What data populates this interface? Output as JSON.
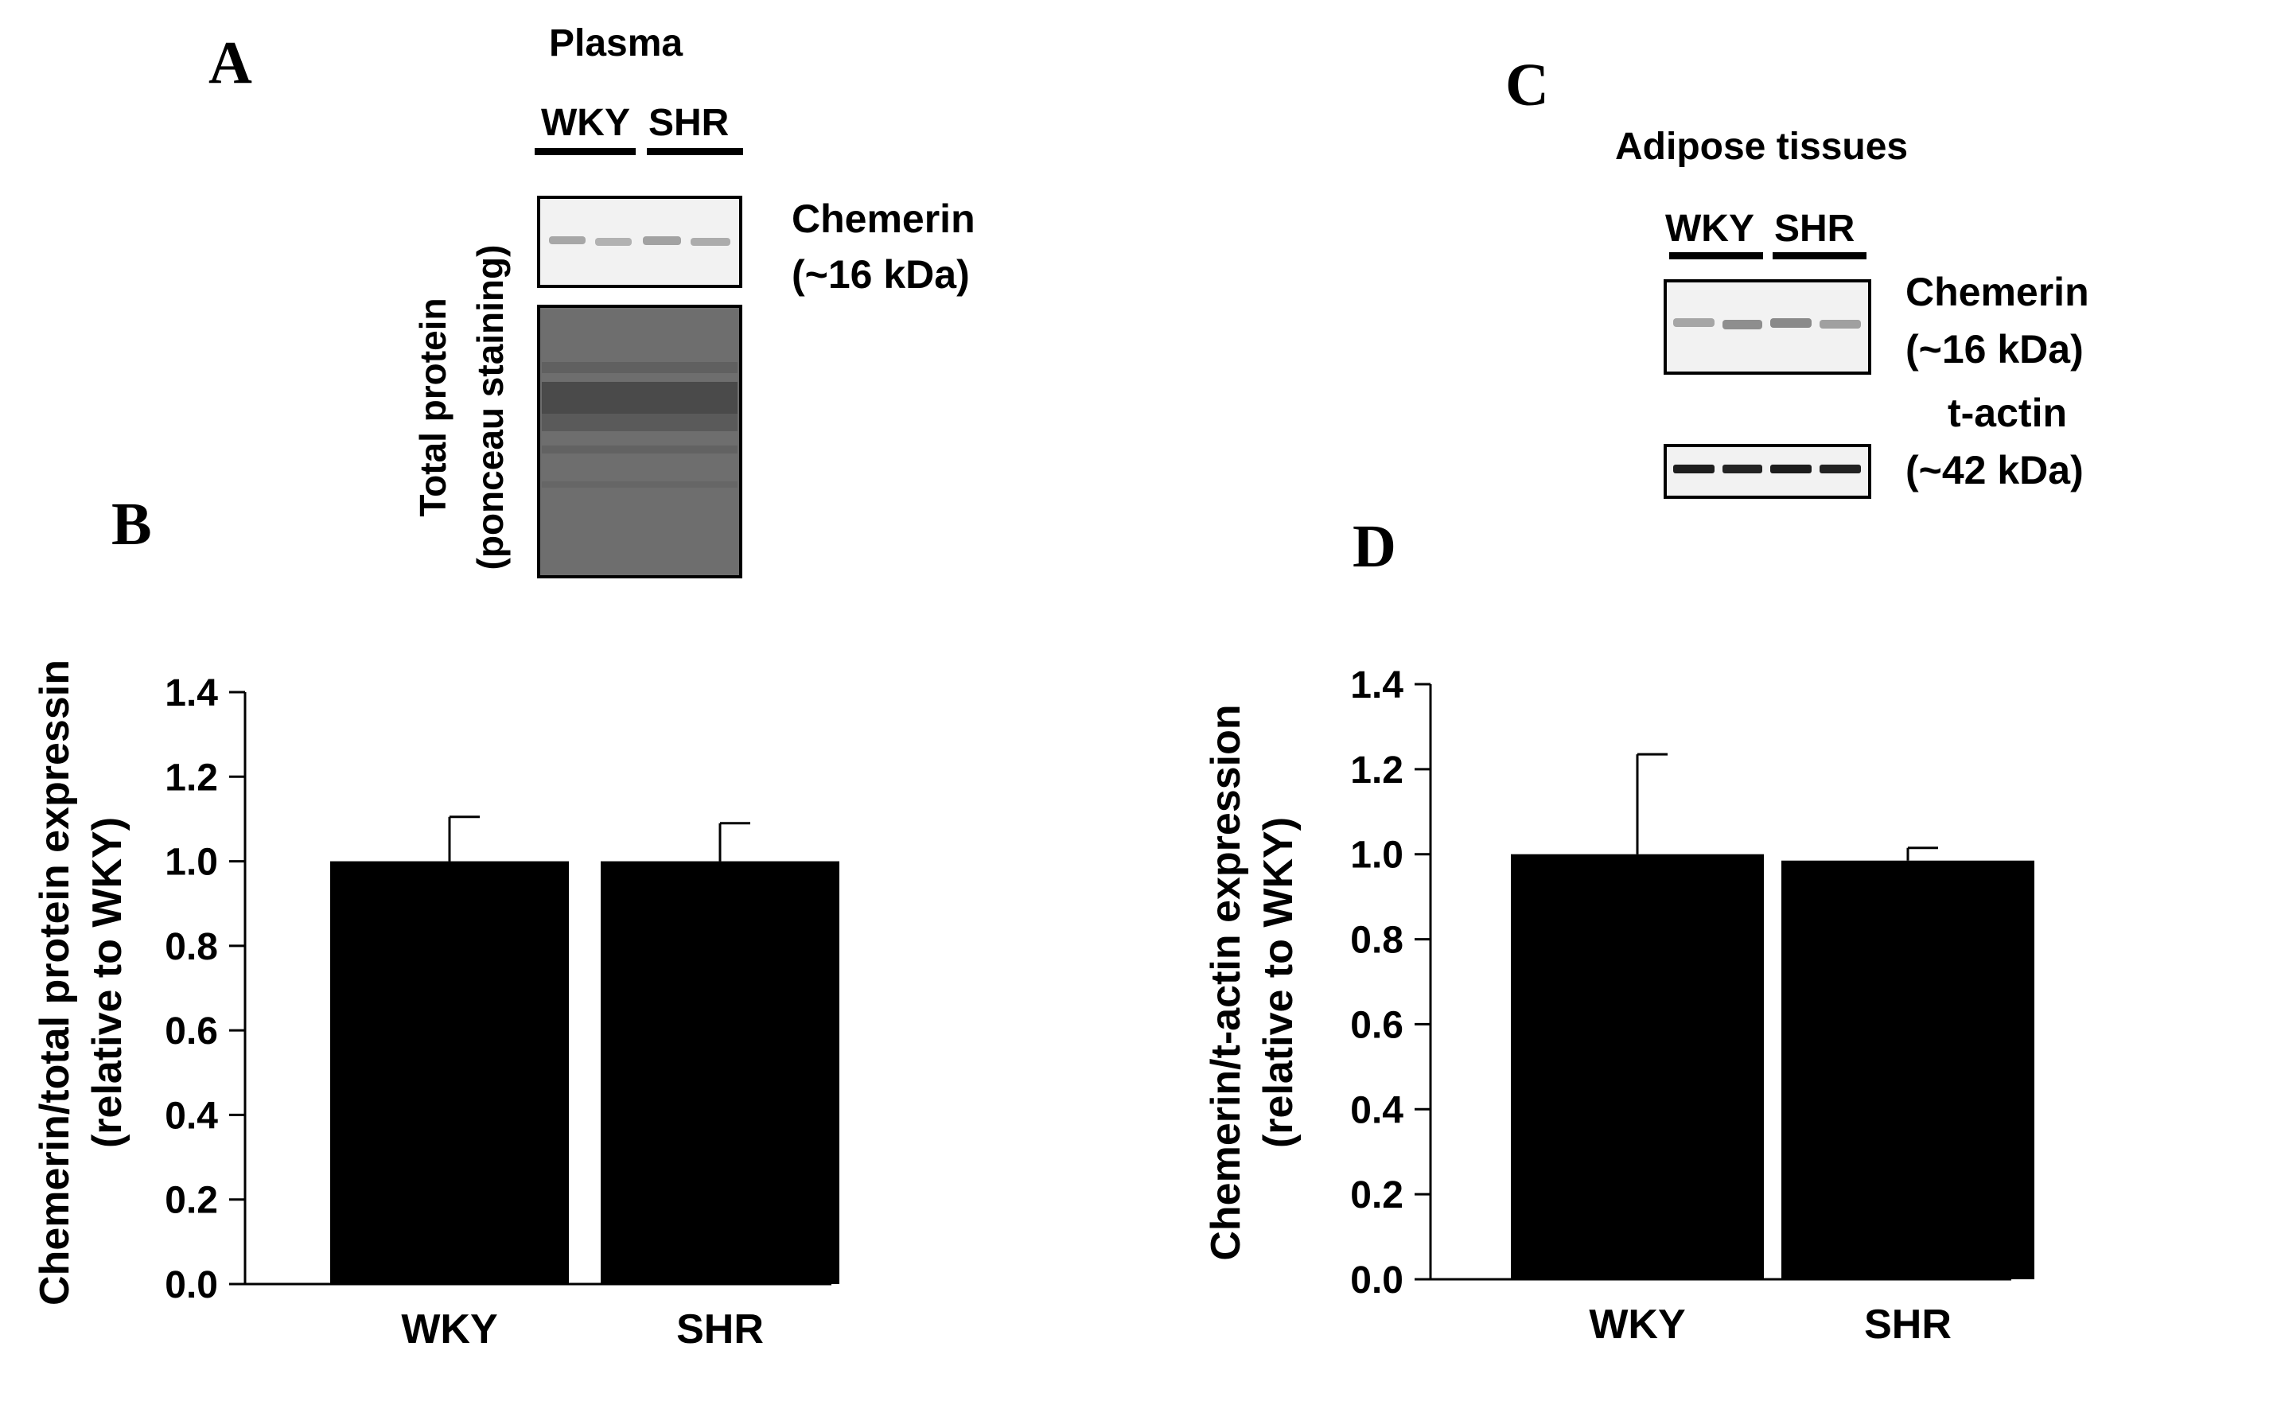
{
  "panels": {
    "a": "A",
    "b": "B",
    "c": "C",
    "d": "D"
  },
  "blot_a": {
    "title": "Plasma",
    "lane_labels": [
      "WKY",
      "SHR"
    ],
    "band_label_line1": "Chemerin",
    "band_label_line2": "(~16 kDa)",
    "side_label_line1": "Total protein",
    "side_label_line2": "(ponceau staining)"
  },
  "blot_c": {
    "title": "Adipose tissues",
    "lane_labels": [
      "WKY",
      "SHR"
    ],
    "band1_line1": "Chemerin",
    "band1_line2": "(~16 kDa)",
    "band2_line1": "t-actin",
    "band2_line2": "(~42 kDa)"
  },
  "colors": {
    "bar": "#000000",
    "axis": "#000000",
    "ponceau": "#6e6e6e",
    "blot_bg": "#f2f2f2"
  },
  "chart_data": [
    {
      "id": "B",
      "type": "bar",
      "categories": [
        "WKY",
        "SHR"
      ],
      "values": [
        1.0,
        1.0
      ],
      "errors": [
        0.105,
        0.09
      ],
      "ylabel_line1": "Chemerin/total protein expressin",
      "ylabel_line2": "(relative to WKY)",
      "xlabel": "",
      "ylim": [
        0,
        1.4
      ],
      "yticks": [
        "0.0",
        "0.2",
        "0.4",
        "0.6",
        "0.8",
        "1.0",
        "1.2",
        "1.4"
      ],
      "grid": false
    },
    {
      "id": "D",
      "type": "bar",
      "categories": [
        "WKY",
        "SHR"
      ],
      "values": [
        1.0,
        0.985
      ],
      "errors": [
        0.235,
        0.03
      ],
      "ylabel_line1": "Chemerin/t-actin expression",
      "ylabel_line2": "(relative to WKY)",
      "xlabel": "",
      "ylim": [
        0,
        1.4
      ],
      "yticks": [
        "0.0",
        "0.2",
        "0.4",
        "0.6",
        "0.8",
        "1.0",
        "1.2",
        "1.4"
      ],
      "grid": false
    }
  ]
}
